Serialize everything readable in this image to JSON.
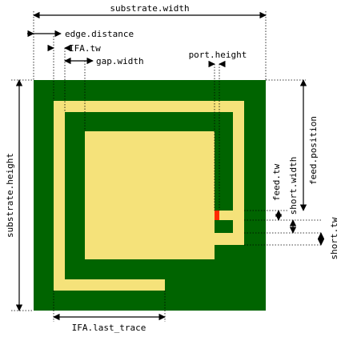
{
  "colors": {
    "substrate": "#006400",
    "trace": "#f5e27a",
    "port": "#ff2a00",
    "annotation": "#000000"
  },
  "labels": {
    "substrate_width": "substrate.width",
    "edge_distance": "edge.distance",
    "ifa_tw": "IFA.tw",
    "gap_width": "gap.width",
    "port_height": "port.height",
    "substrate_height": "substrate.height",
    "feed_position": "feed.position",
    "feed_tw": "feed.tw",
    "short_width": "short.width",
    "short_tw": "short.tw",
    "ifa_last_trace": "IFA.last_trace"
  }
}
